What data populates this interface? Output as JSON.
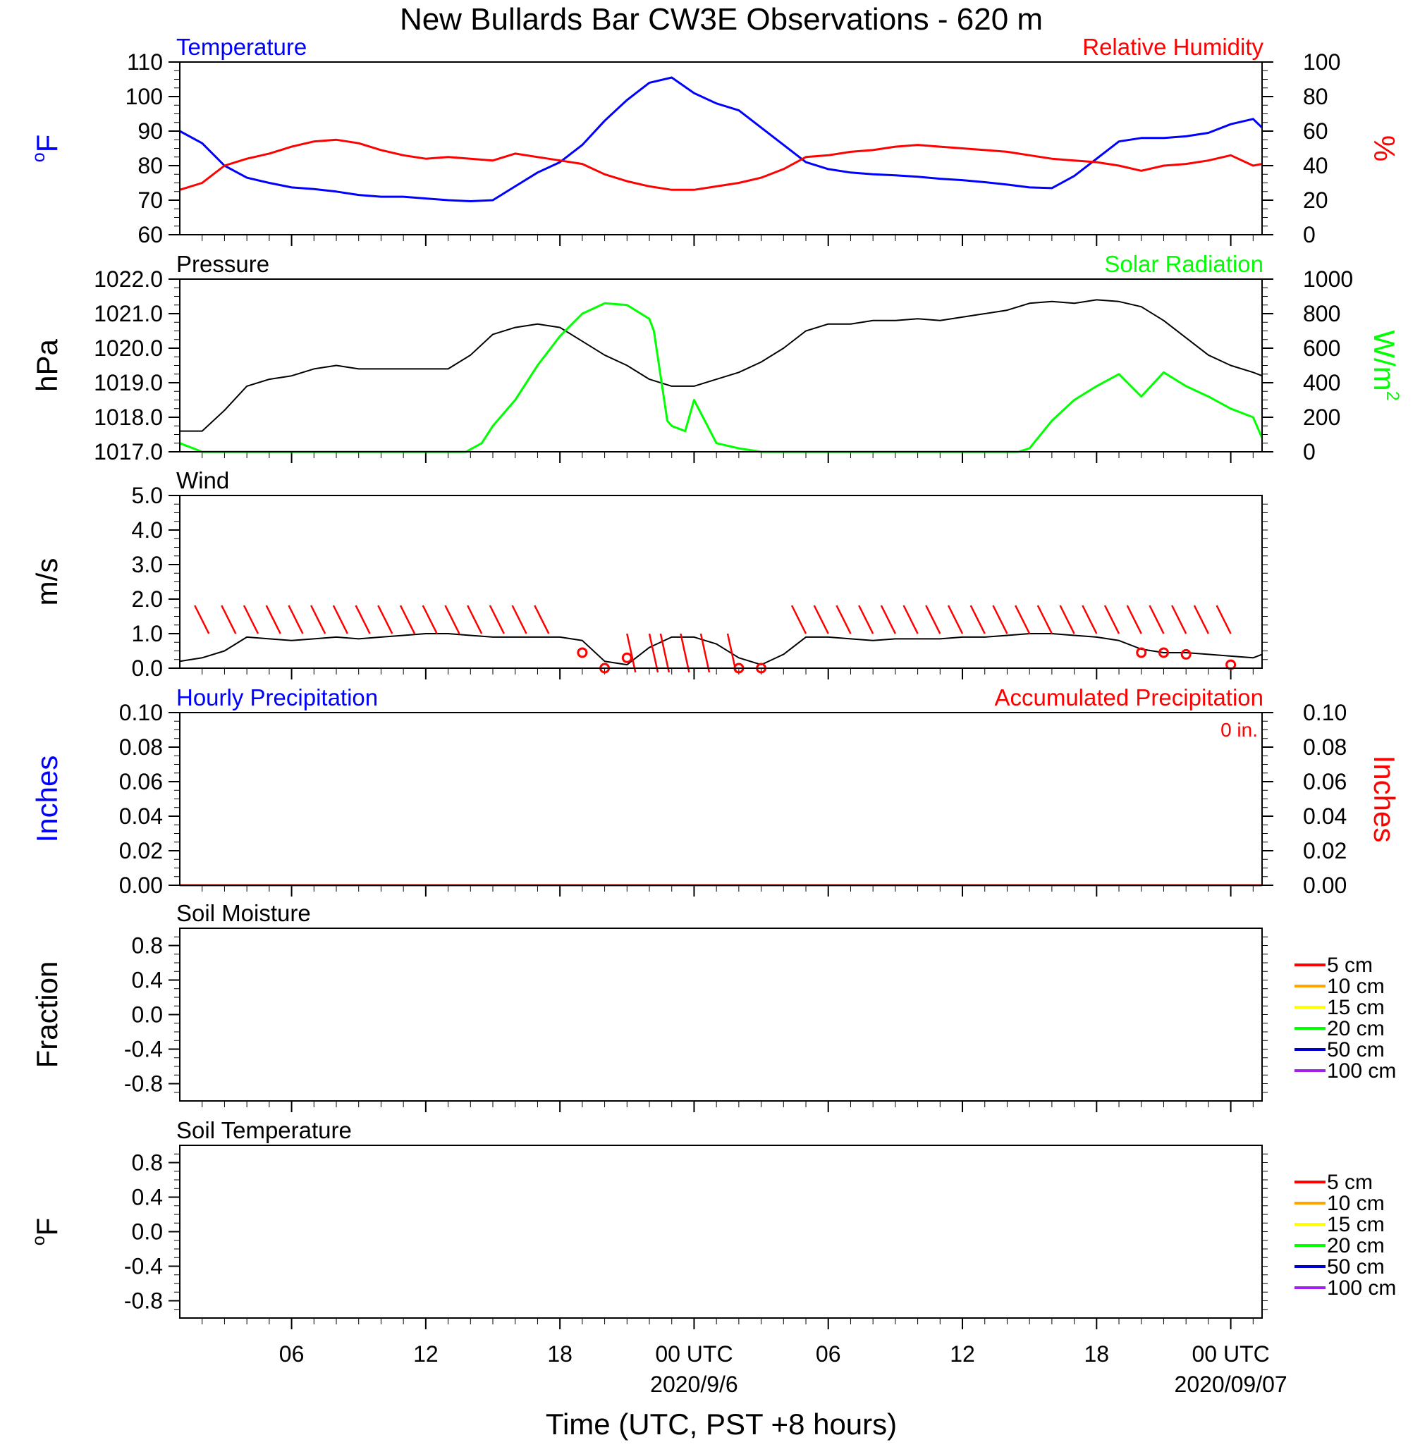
{
  "figure": {
    "title": "New Bullards Bar CW3E Observations - 620 m",
    "xlabel": "Time (UTC, PST +8 hours)",
    "x_ticks": [
      "06",
      "12",
      "18",
      "00 UTC",
      "06",
      "12",
      "18",
      "00 UTC"
    ],
    "x_tick_hours": [
      6,
      12,
      18,
      24,
      30,
      36,
      42,
      48
    ],
    "date_labels": [
      "2020/9/6",
      "2020/09/07"
    ],
    "x_range_hours": [
      1,
      49.4
    ]
  },
  "colors": {
    "blue": "#0000ff",
    "red": "#ff0000",
    "green": "#00ff00",
    "black": "#000000",
    "orange": "#ffa500",
    "yellow": "#ffff00",
    "darkblue": "#0000cd",
    "purple": "#a020f0"
  },
  "chart_data": [
    {
      "type": "line",
      "panel": "temperature-humidity",
      "left_title": "Temperature",
      "right_title": "Relative Humidity",
      "ylabel": "oF",
      "ylabel_right": "%",
      "ylim": [
        60,
        110
      ],
      "ylim_right": [
        0,
        100
      ],
      "yticks": [
        "60",
        "70",
        "80",
        "90",
        "100",
        "110"
      ],
      "yticks_right": [
        "0",
        "20",
        "40",
        "60",
        "80",
        "100"
      ],
      "series": [
        {
          "name": "Temperature",
          "color": "blue",
          "axis": "left",
          "x": [
            1,
            2,
            3,
            4,
            5,
            6,
            7,
            8,
            9,
            10,
            11,
            12,
            13,
            14,
            15,
            16,
            17,
            18,
            19,
            20,
            21,
            22,
            23,
            24,
            25,
            26,
            27,
            28,
            29,
            30,
            31,
            32,
            33,
            34,
            35,
            36,
            37,
            38,
            39,
            40,
            41,
            42,
            43,
            44,
            45,
            46,
            47,
            48,
            49,
            49.4
          ],
          "y": [
            90,
            86.5,
            80,
            76.5,
            75,
            73.7,
            73.2,
            72.5,
            71.5,
            71,
            71,
            70.5,
            70,
            69.7,
            70,
            74,
            78,
            81,
            86,
            93,
            99,
            104,
            105.5,
            101,
            98,
            96,
            91,
            86,
            81,
            79,
            78,
            77.5,
            77.2,
            76.8,
            76.2,
            75.8,
            75.2,
            74.5,
            73.7,
            73.5,
            77,
            82,
            87,
            88,
            88,
            88.5,
            89.5,
            92,
            93.5,
            91
          ]
        },
        {
          "name": "Relative Humidity",
          "color": "red",
          "axis": "right",
          "x": [
            1,
            2,
            3,
            4,
            5,
            6,
            7,
            8,
            9,
            10,
            11,
            12,
            13,
            14,
            15,
            16,
            17,
            18,
            19,
            20,
            21,
            22,
            23,
            24,
            25,
            26,
            27,
            28,
            29,
            30,
            31,
            32,
            33,
            34,
            35,
            36,
            37,
            38,
            39,
            40,
            41,
            42,
            43,
            44,
            45,
            46,
            47,
            48,
            49,
            49.4
          ],
          "y": [
            26,
            30,
            40,
            44,
            47,
            51,
            54,
            55,
            53,
            49,
            46,
            44,
            45,
            44,
            43,
            47,
            45,
            43,
            41,
            35,
            31,
            28,
            26,
            26,
            28,
            30,
            33,
            38,
            45,
            46,
            48,
            49,
            51,
            52,
            51,
            50,
            49,
            48,
            46,
            44,
            43,
            42,
            40,
            37,
            40,
            41,
            43,
            46,
            40,
            41
          ]
        }
      ]
    },
    {
      "type": "line",
      "panel": "pressure-solar",
      "left_title": "Pressure",
      "right_title": "Solar Radiation",
      "ylabel": "hPa",
      "ylabel_right": "W/m2",
      "ylim": [
        1017,
        1022
      ],
      "ylim_right": [
        0,
        1000
      ],
      "yticks": [
        "1017.0",
        "1018.0",
        "1019.0",
        "1020.0",
        "1021.0",
        "1022.0"
      ],
      "yticks_right": [
        "0",
        "200",
        "400",
        "600",
        "800",
        "1000"
      ],
      "series": [
        {
          "name": "Pressure",
          "color": "black",
          "axis": "left",
          "x": [
            1,
            2,
            3,
            4,
            5,
            6,
            7,
            8,
            9,
            10,
            11,
            12,
            13,
            14,
            15,
            16,
            17,
            18,
            19,
            20,
            21,
            22,
            23,
            24,
            25,
            26,
            27,
            28,
            29,
            30,
            31,
            32,
            33,
            34,
            35,
            36,
            37,
            38,
            39,
            40,
            41,
            42,
            43,
            44,
            45,
            46,
            47,
            48,
            49,
            49.4
          ],
          "y": [
            1017.6,
            1017.6,
            1018.2,
            1018.9,
            1019.1,
            1019.2,
            1019.4,
            1019.5,
            1019.4,
            1019.4,
            1019.4,
            1019.4,
            1019.4,
            1019.8,
            1020.4,
            1020.6,
            1020.7,
            1020.6,
            1020.2,
            1019.8,
            1019.5,
            1019.1,
            1018.9,
            1018.9,
            1019.1,
            1019.3,
            1019.6,
            1020.0,
            1020.5,
            1020.7,
            1020.7,
            1020.8,
            1020.8,
            1020.85,
            1020.8,
            1020.9,
            1021.0,
            1021.1,
            1021.3,
            1021.35,
            1021.3,
            1021.4,
            1021.35,
            1021.2,
            1020.8,
            1020.3,
            1019.8,
            1019.5,
            1019.3,
            1019.2
          ]
        },
        {
          "name": "Solar Radiation",
          "color": "green",
          "axis": "right",
          "x": [
            1,
            2,
            3,
            4,
            5,
            6,
            7,
            8,
            9,
            10,
            11,
            12,
            13,
            13.8,
            14.5,
            15,
            16,
            17,
            18,
            19,
            20,
            21,
            22,
            22.2,
            22.8,
            23,
            23.6,
            24,
            24.4,
            25,
            26,
            27,
            28,
            29,
            30,
            31,
            32,
            33,
            34,
            35,
            36,
            37,
            38,
            38.5,
            39,
            40,
            41,
            42,
            43,
            44,
            45,
            46,
            47,
            48,
            49,
            49.4
          ],
          "y": [
            50,
            0,
            0,
            0,
            0,
            0,
            0,
            0,
            0,
            0,
            0,
            0,
            0,
            0,
            50,
            150,
            300,
            500,
            670,
            800,
            860,
            850,
            770,
            700,
            180,
            150,
            120,
            300,
            200,
            50,
            20,
            0,
            0,
            0,
            0,
            0,
            0,
            0,
            0,
            0,
            0,
            0,
            0,
            0,
            20,
            180,
            300,
            380,
            450,
            320,
            460,
            380,
            320,
            250,
            200,
            80
          ]
        }
      ]
    },
    {
      "type": "line",
      "panel": "wind",
      "left_title": "Wind",
      "ylabel": "m/s",
      "ylim": [
        0,
        5
      ],
      "yticks": [
        "0.0",
        "1.0",
        "2.0",
        "3.0",
        "4.0",
        "5.0"
      ],
      "series": [
        {
          "name": "Wind",
          "color": "black",
          "axis": "left",
          "x": [
            1,
            2,
            3,
            4,
            5,
            6,
            7,
            8,
            9,
            10,
            11,
            12,
            13,
            14,
            15,
            16,
            17,
            18,
            19,
            20,
            21,
            22,
            23,
            24,
            25,
            26,
            27,
            28,
            29,
            30,
            31,
            32,
            33,
            34,
            35,
            36,
            37,
            38,
            39,
            40,
            41,
            42,
            43,
            44,
            45,
            46,
            47,
            48,
            49,
            49.4
          ],
          "y": [
            0.2,
            0.3,
            0.5,
            0.9,
            0.85,
            0.8,
            0.85,
            0.9,
            0.85,
            0.9,
            0.95,
            1.0,
            1.0,
            0.95,
            0.9,
            0.9,
            0.9,
            0.9,
            0.8,
            0.2,
            0.1,
            0.6,
            0.9,
            0.9,
            0.7,
            0.3,
            0.1,
            0.4,
            0.9,
            0.9,
            0.85,
            0.8,
            0.85,
            0.85,
            0.85,
            0.9,
            0.9,
            0.95,
            1.0,
            1.0,
            0.95,
            0.9,
            0.8,
            0.55,
            0.45,
            0.45,
            0.4,
            0.35,
            0.3,
            0.4
          ]
        },
        {
          "name": "Wind barbs",
          "color": "red",
          "axis": "left",
          "x": [
            2.3,
            3.5,
            4.5,
            5.5,
            6.5,
            7.5,
            8.5,
            9.5,
            10.5,
            11.5,
            12.5,
            13.5,
            14.5,
            15.5,
            16.5,
            17.5,
            21,
            22,
            22.5,
            23.4,
            24.3,
            25.5,
            29,
            30,
            31,
            32,
            33,
            34,
            35,
            36,
            37,
            38,
            39,
            40,
            41,
            42,
            43,
            44,
            45,
            46,
            47,
            48
          ],
          "y": [
            1.0,
            1.0,
            1.0,
            1.0,
            1.0,
            1.0,
            1.0,
            1.0,
            1.0,
            1.0,
            1.0,
            1.0,
            1.0,
            1.0,
            1.0,
            1.0,
            1.0,
            1.0,
            1.0,
            1.0,
            1.0,
            1.0,
            1.0,
            1.0,
            1.0,
            1.0,
            1.0,
            1.0,
            1.0,
            1.0,
            1.0,
            1.0,
            1.0,
            1.0,
            1.0,
            1.0,
            1.0,
            1.0,
            1.0,
            1.0,
            1.0,
            1.0
          ]
        },
        {
          "name": "Calm markers",
          "color": "red",
          "axis": "left",
          "x": [
            19,
            20,
            21,
            26,
            27,
            44,
            45,
            46,
            48
          ],
          "y": [
            0.45,
            0.0,
            0.3,
            0.0,
            0.0,
            0.45,
            0.45,
            0.4,
            0.1
          ]
        }
      ]
    },
    {
      "type": "line",
      "panel": "precipitation",
      "left_title": "Hourly Precipitation",
      "right_title": "Accumulated Precipitation",
      "annotation": "0 in.",
      "ylabel": "Inches",
      "ylabel_right": "Inches",
      "ylim": [
        0,
        0.1
      ],
      "ylim_right": [
        0,
        0.1
      ],
      "yticks": [
        "0.00",
        "0.02",
        "0.04",
        "0.06",
        "0.08",
        "0.10"
      ],
      "yticks_right": [
        "0.00",
        "0.02",
        "0.04",
        "0.06",
        "0.08",
        "0.10"
      ],
      "series": [
        {
          "name": "Hourly Precipitation",
          "color": "blue",
          "axis": "left",
          "x": [
            1,
            49.4
          ],
          "y": [
            0,
            0
          ]
        },
        {
          "name": "Accumulated Precipitation",
          "color": "red",
          "axis": "right",
          "x": [
            1,
            49.4
          ],
          "y": [
            0,
            0
          ]
        }
      ]
    },
    {
      "type": "line",
      "panel": "soil-moisture",
      "left_title": "Soil Moisture",
      "ylabel": "Fraction",
      "ylim": [
        -1,
        1
      ],
      "yticks": [
        "-0.8",
        "-0.4",
        "0.0",
        "0.4",
        "0.8"
      ],
      "legend": [
        "5 cm",
        "10 cm",
        "15 cm",
        "20 cm",
        "50 cm",
        "100 cm"
      ],
      "legend_colors": [
        "red",
        "orange",
        "yellow",
        "green",
        "darkblue",
        "purple"
      ],
      "legend_position": "right"
    },
    {
      "type": "line",
      "panel": "soil-temperature",
      "left_title": "Soil Temperature",
      "ylabel": "oF",
      "ylim": [
        -1,
        1
      ],
      "yticks": [
        "-0.8",
        "-0.4",
        "0.0",
        "0.4",
        "0.8"
      ],
      "legend": [
        "5 cm",
        "10 cm",
        "15 cm",
        "20 cm",
        "50 cm",
        "100 cm"
      ],
      "legend_colors": [
        "red",
        "orange",
        "yellow",
        "green",
        "darkblue",
        "purple"
      ],
      "legend_position": "right"
    }
  ]
}
